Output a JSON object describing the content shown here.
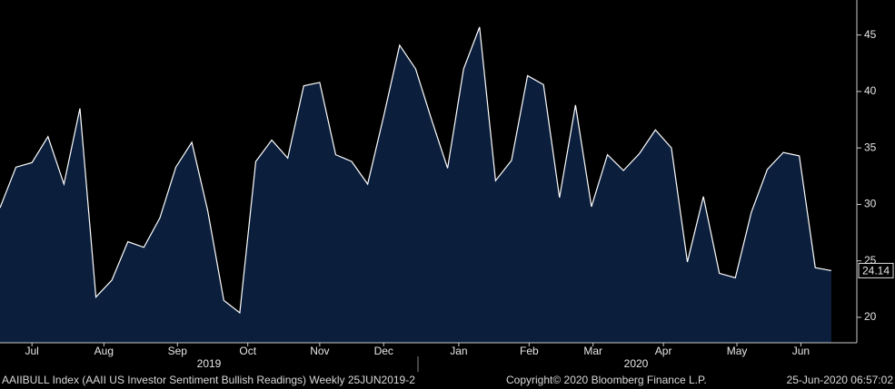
{
  "chart_data": {
    "type": "area",
    "title": "AAIIBULL Index (AAII US Investor Sentiment Bullish Readings)  Weekly 25JUN2019-2",
    "copyright": "Copyright© 2020 Bloomberg Finance L.P.",
    "timestamp": "25-Jun-2020 06:57:02",
    "years": [
      "2019",
      "2020"
    ],
    "x": [
      0,
      1,
      2,
      3,
      4,
      5,
      6,
      7,
      8,
      9,
      10,
      11,
      12,
      13,
      14,
      15,
      16,
      17,
      18,
      19,
      20,
      21,
      22,
      23,
      24,
      25,
      26,
      27,
      28,
      29,
      30,
      31,
      32,
      33,
      34,
      35,
      36,
      37,
      38,
      39,
      40,
      41,
      42,
      43,
      44,
      45,
      46,
      47,
      48,
      49,
      50,
      51,
      52
    ],
    "series": [
      {
        "name": "AAIIBULL Index",
        "color": "#0b1f3d",
        "line_color": "#ffffff",
        "values": [
          29.7,
          33.3,
          33.7,
          36.0,
          31.8,
          38.5,
          21.8,
          23.3,
          26.7,
          26.2,
          28.8,
          33.3,
          35.5,
          29.4,
          21.5,
          20.4,
          33.8,
          35.7,
          34.1,
          40.5,
          40.8,
          34.4,
          33.8,
          31.8,
          37.8,
          44.1,
          42.0,
          37.5,
          33.2,
          42.0,
          45.7,
          32.1,
          33.9,
          41.4,
          40.6,
          30.6,
          38.8,
          29.8,
          34.4,
          33.0,
          34.5,
          36.6,
          35.0,
          24.9,
          30.7,
          23.9,
          23.5,
          29.3,
          33.1,
          34.6,
          34.3,
          24.4,
          24.14
        ]
      }
    ],
    "last_value_label": "24.14",
    "xlim": [
      0,
      53.6
    ],
    "ylim": [
      17.75,
      48.1
    ],
    "yticks": [
      20,
      25,
      30,
      35,
      40,
      45
    ],
    "xticks": [
      {
        "value": 2.0,
        "label": "Jul"
      },
      {
        "value": 6.5,
        "label": "Aug"
      },
      {
        "value": 11.1,
        "label": "Sep"
      },
      {
        "value": 15.5,
        "label": "Oct"
      },
      {
        "value": 20.0,
        "label": "Nov"
      },
      {
        "value": 24.0,
        "label": "Dec"
      },
      {
        "value": 28.7,
        "label": "Jan"
      },
      {
        "value": 33.1,
        "label": "Feb"
      },
      {
        "value": 37.1,
        "label": "Mar"
      },
      {
        "value": 41.5,
        "label": "Apr"
      },
      {
        "value": 46.1,
        "label": "May"
      },
      {
        "value": 50.1,
        "label": "Jun"
      }
    ]
  }
}
